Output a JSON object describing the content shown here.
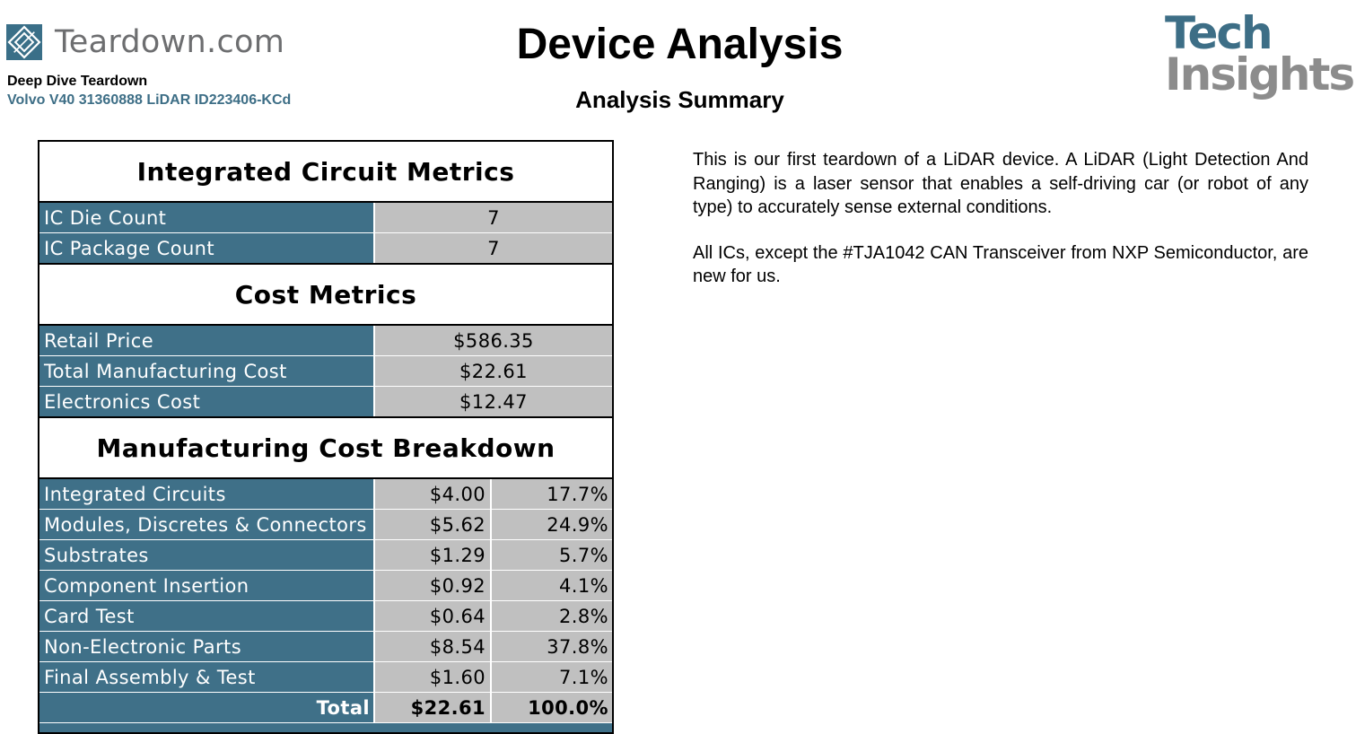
{
  "header": {
    "brand_name": "Teardown.com",
    "doc_type": "Deep Dive Teardown",
    "device": "Volvo V40 31360888 LiDAR ID223406-KCd",
    "title": "Device Analysis",
    "subtitle": "Analysis Summary",
    "logo_line1": "Tech",
    "logo_line2": "Insights",
    "brand_icon": "diamond-logo-icon",
    "colors": {
      "accent": "#3f7088",
      "cell": "#c0c0c0",
      "logo_gray": "#8c8c8c"
    }
  },
  "ic_metrics": {
    "heading": "Integrated Circuit Metrics",
    "rows": [
      {
        "label": "IC Die Count",
        "value": "7"
      },
      {
        "label": "IC Package Count",
        "value": "7"
      }
    ]
  },
  "cost_metrics": {
    "heading": "Cost Metrics",
    "rows": [
      {
        "label": "Retail Price",
        "value": "$586.35"
      },
      {
        "label": "Total Manufacturing Cost",
        "value": "$22.61"
      },
      {
        "label": "Electronics Cost",
        "value": "$12.47"
      }
    ]
  },
  "breakdown": {
    "heading": "Manufacturing Cost Breakdown",
    "rows": [
      {
        "label": "Integrated Circuits",
        "cost": "$4.00",
        "pct": "17.7%"
      },
      {
        "label": "Modules, Discretes & Connectors",
        "cost": "$5.62",
        "pct": "24.9%"
      },
      {
        "label": "Substrates",
        "cost": "$1.29",
        "pct": "5.7%"
      },
      {
        "label": "Component Insertion",
        "cost": "$0.92",
        "pct": "4.1%"
      },
      {
        "label": "Card Test",
        "cost": "$0.64",
        "pct": "2.8%"
      },
      {
        "label": "Non-Electronic Parts",
        "cost": "$8.54",
        "pct": "37.8%"
      },
      {
        "label": "Final Assembly & Test",
        "cost": "$1.60",
        "pct": "7.1%"
      }
    ],
    "total": {
      "label": "Total",
      "cost": "$22.61",
      "pct": "100.0%"
    }
  },
  "summary": {
    "paragraphs": [
      "This is our first teardown of a LiDAR device. A LiDAR (Light Detection And Ranging) is a laser sensor that enables a self-driving car (or robot of any type) to accurately sense external conditions.",
      "All ICs, except the #TJA1042 CAN Transceiver from NXP Semiconductor, are new for us."
    ]
  }
}
